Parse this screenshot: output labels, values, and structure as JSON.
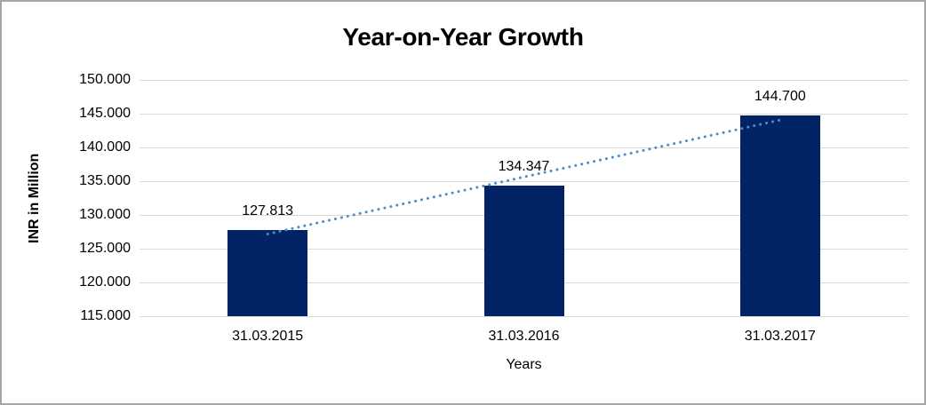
{
  "frame": {
    "background_color": "#ffffff",
    "border_color": "#a6a6a6"
  },
  "chart_data": {
    "type": "bar",
    "title": "Year-on-Year Growth",
    "xlabel": "Years",
    "ylabel": "INR in Million",
    "categories": [
      "31.03.2015",
      "31.03.2016",
      "31.03.2017"
    ],
    "values": [
      127813,
      134347,
      144700
    ],
    "data_labels": [
      "127.813",
      "134.347",
      "144.700"
    ],
    "ylim": [
      115000,
      150000
    ],
    "ytick_step": 5000,
    "ytick_labels": [
      "150.000",
      "145.000",
      "140.000",
      "135.000",
      "130.000",
      "125.000",
      "120.000",
      "115.000"
    ],
    "grid": "horizontal",
    "gridline_color": "#d9d9d9",
    "bar_color": "#022366",
    "legend_position": "none",
    "trendline": {
      "type": "linear",
      "style": "dotted",
      "color": "#4f8bc9"
    }
  }
}
